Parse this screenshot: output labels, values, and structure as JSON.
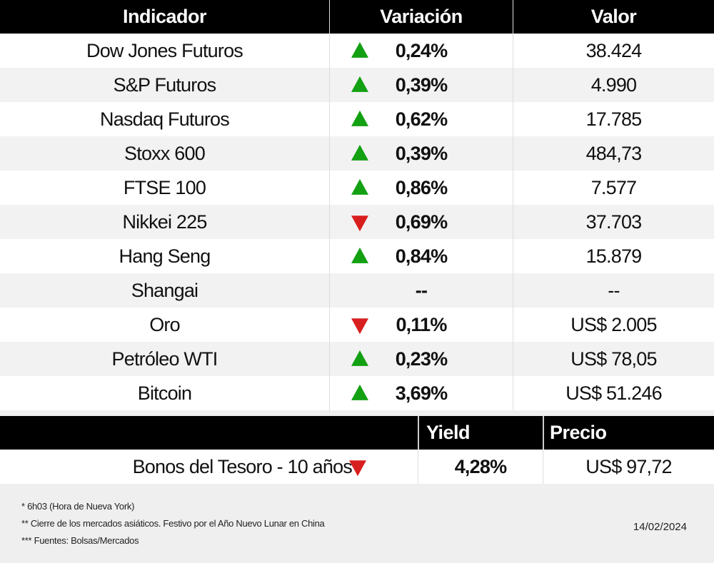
{
  "headers": {
    "indicador": "Indicador",
    "variacion": "Variación",
    "valor": "Valor"
  },
  "rows": [
    {
      "name": "Dow Jones Futuros",
      "direction": "up",
      "variation": "0,24%",
      "value": "38.424"
    },
    {
      "name": "S&P Futuros",
      "direction": "up",
      "variation": "0,39%",
      "value": "4.990"
    },
    {
      "name": "Nasdaq Futuros",
      "direction": "up",
      "variation": "0,62%",
      "value": "17.785"
    },
    {
      "name": "Stoxx 600",
      "direction": "up",
      "variation": "0,39%",
      "value": "484,73"
    },
    {
      "name": "FTSE 100",
      "direction": "up",
      "variation": "0,86%",
      "value": "7.577"
    },
    {
      "name": "Nikkei 225",
      "direction": "down",
      "variation": "0,69%",
      "value": "37.703"
    },
    {
      "name": "Hang Seng",
      "direction": "up",
      "variation": "0,84%",
      "value": "15.879"
    },
    {
      "name": "Shangai",
      "direction": "none",
      "variation": "--",
      "value": "--"
    },
    {
      "name": "Oro",
      "direction": "down",
      "variation": "0,11%",
      "value": "US$ 2.005"
    },
    {
      "name": "Petróleo WTI",
      "direction": "up",
      "variation": "0,23%",
      "value": "US$ 78,05"
    },
    {
      "name": "Bitcoin",
      "direction": "up",
      "variation": "3,69%",
      "value": "US$ 51.246"
    }
  ],
  "bond": {
    "header_yield": "Yield",
    "header_price": "Precio",
    "name": "Bonos del Tesoro - 10 años",
    "direction": "down",
    "yield": "4,28%",
    "price": "US$ 97,72"
  },
  "footer": {
    "notes": [
      "* 6h03 (Hora de Nueva York)",
      " ** Cierre de los mercados asiáticos. Festivo por el Año Nuevo Lunar en  China",
      "*** Fuentes: Bolsas/Mercados"
    ],
    "date": "14/02/2024"
  },
  "colors": {
    "up": "#13a013",
    "down": "#d81f1f",
    "header_bg": "#000000"
  }
}
